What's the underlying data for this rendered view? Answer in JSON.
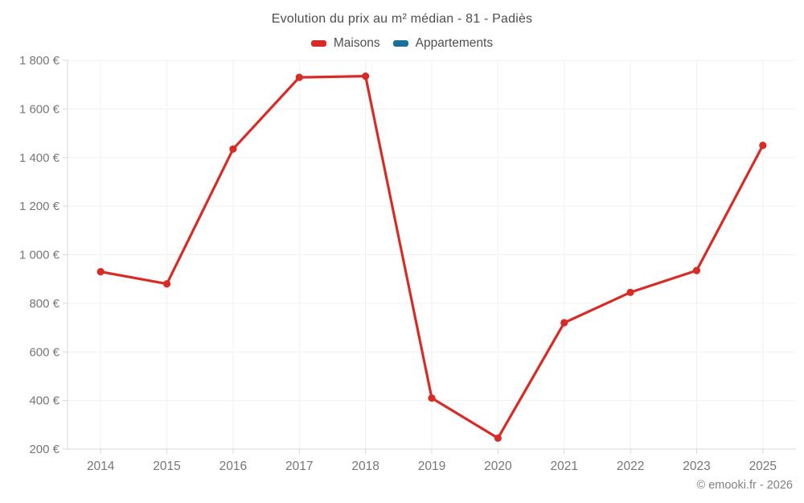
{
  "attribution": "© emooki.fr - 2026",
  "chart_data": {
    "type": "line",
    "title": "Evolution du prix au m² médian - 81 - Padiès",
    "x_labels": [
      "2014",
      "2015",
      "2016",
      "2017",
      "2018",
      "2019",
      "2020",
      "2021",
      "2022",
      "2023",
      "2025"
    ],
    "series": [
      {
        "name": "Maisons",
        "color": "#d92b26",
        "values": [
          930,
          880,
          1435,
          1730,
          1735,
          410,
          245,
          720,
          845,
          935,
          1450
        ]
      },
      {
        "name": "Appartements",
        "color": "#1a7098",
        "values": []
      }
    ],
    "y_ticks": [
      {
        "value": 200,
        "label": "200 €"
      },
      {
        "value": 400,
        "label": "400 €"
      },
      {
        "value": 600,
        "label": "600 €"
      },
      {
        "value": 800,
        "label": "800 €"
      },
      {
        "value": 1000,
        "label": "1 000 €"
      },
      {
        "value": 1200,
        "label": "1 200 €"
      },
      {
        "value": 1400,
        "label": "1 400 €"
      },
      {
        "value": 1600,
        "label": "1 600 €"
      },
      {
        "value": 1800,
        "label": "1 800 €"
      }
    ],
    "ylim": [
      200,
      1800
    ],
    "grid": true,
    "legend_position": "top",
    "xlabel": "",
    "ylabel": ""
  }
}
